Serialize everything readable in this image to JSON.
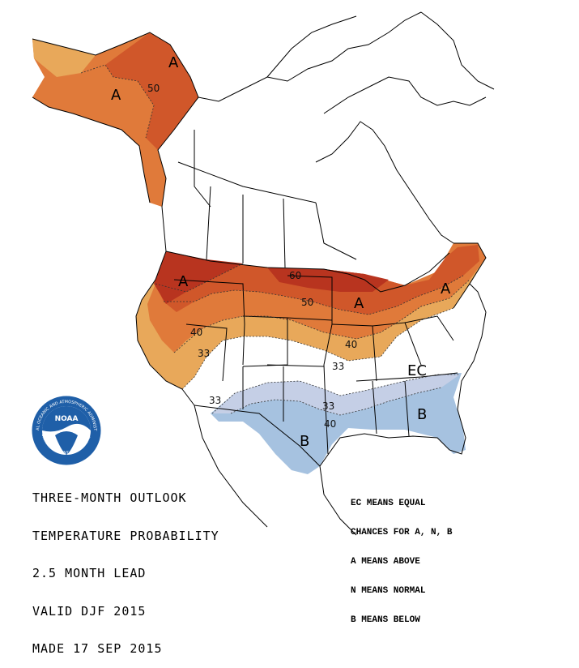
{
  "map": {
    "title_lines": [
      "THREE-MONTH OUTLOOK",
      "TEMPERATURE PROBABILITY",
      "2.5 MONTH LEAD",
      "VALID DJF 2015",
      "MADE 17 SEP 2015"
    ],
    "legend_lines": [
      "EC MEANS EQUAL",
      "CHANCES FOR A, N, B",
      "A MEANS ABOVE",
      "N MEANS NORMAL",
      "B MEANS BELOW"
    ],
    "region_labels": {
      "alaska_a1": "A",
      "alaska_a2": "A",
      "northwest_a": "A",
      "great_lakes_a": "A",
      "northeast_a": "A",
      "south_central_b": "B",
      "southeast_b": "B",
      "ec": "EC"
    },
    "contour_labels": {
      "alaska_50": "50",
      "north_60": "60",
      "north_50": "50",
      "west_40": "40",
      "west_33": "33",
      "central_40": "40",
      "central_33": "33",
      "south_33_west": "33",
      "south_33": "33",
      "south_40": "40"
    },
    "logo_text": "NOAA",
    "logo_ring_text": "NATIONAL OCEANIC AND ATMOSPHERIC ADMINISTRATION",
    "logo_ring_text_bottom": "U.S. DEPARTMENT OF COMMERCE",
    "colors": {
      "above_33": "#e8a85a",
      "above_40": "#e07a3a",
      "above_50": "#d0572a",
      "above_60": "#b8341f",
      "below_33": "#c5cfe6",
      "below_40": "#a6c2e0",
      "border": "#000000",
      "noaa_blue": "#1f5fa8"
    }
  }
}
